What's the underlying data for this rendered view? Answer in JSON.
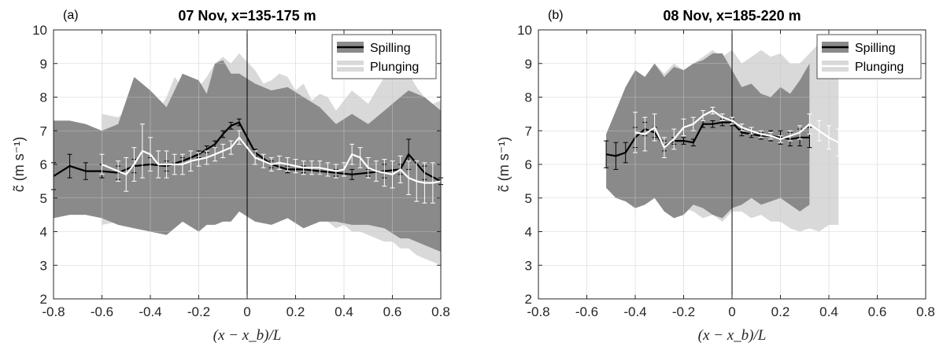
{
  "chart_data": [
    {
      "type": "line",
      "panel_label": "(a)",
      "title": "07 Nov, x=135-175 m",
      "xlabel": "(x − x_b)/L",
      "ylabel": "c̃  (m s⁻¹)",
      "xlim": [
        -0.8,
        0.8
      ],
      "ylim": [
        2,
        10
      ],
      "xticks": [
        "-0.8",
        "-0.6",
        "-0.4",
        "-0.2",
        "0",
        "0.2",
        "0.4",
        "0.6",
        "0.8"
      ],
      "yticks": [
        "2",
        "3",
        "4",
        "5",
        "6",
        "7",
        "8",
        "9",
        "10"
      ],
      "grid": true,
      "vertical_line_x": 0,
      "legend": {
        "position": "top-right",
        "entries": [
          "Spilling",
          "Plunging"
        ]
      },
      "series": [
        {
          "name": "Spilling",
          "color": "#000000",
          "band_color": "#8a8a8a",
          "x": [
            -0.8,
            -0.733,
            -0.667,
            -0.6,
            -0.533,
            -0.467,
            -0.4,
            -0.333,
            -0.267,
            -0.2,
            -0.167,
            -0.133,
            -0.1,
            -0.067,
            -0.033,
            0.033,
            0.1,
            0.167,
            0.233,
            0.3,
            0.367,
            0.433,
            0.5,
            0.567,
            0.633,
            0.667,
            0.733,
            0.8
          ],
          "y": [
            5.65,
            5.95,
            5.8,
            5.8,
            5.75,
            5.95,
            6.0,
            5.95,
            6.1,
            6.3,
            6.45,
            6.6,
            6.9,
            7.15,
            7.25,
            6.35,
            6.0,
            5.85,
            5.85,
            5.8,
            5.75,
            5.7,
            5.75,
            5.8,
            5.85,
            6.3,
            5.75,
            5.5
          ],
          "err": [
            0.4,
            0.35,
            0.25,
            0.2,
            0.2,
            0.2,
            0.2,
            0.15,
            0.1,
            0.1,
            0.1,
            0.1,
            0.1,
            0.1,
            0.1,
            0.1,
            0.1,
            0.1,
            0.1,
            0.1,
            0.1,
            0.15,
            0.1,
            0.2,
            0.15,
            0.45,
            0.2,
            0.1
          ],
          "upper": [
            7.3,
            7.3,
            7.2,
            7.0,
            7.2,
            8.6,
            8.2,
            7.7,
            8.7,
            8.5,
            8.1,
            9.0,
            9.1,
            8.7,
            8.7,
            8.4,
            8.2,
            8.3,
            8.0,
            7.7,
            7.2,
            7.5,
            7.2,
            7.6,
            8.0,
            8.2,
            8.0,
            7.6
          ],
          "lower": [
            4.4,
            4.5,
            4.5,
            4.4,
            4.2,
            4.1,
            4.0,
            3.9,
            4.3,
            4.0,
            4.2,
            4.2,
            4.3,
            4.3,
            4.6,
            4.3,
            4.2,
            4.4,
            4.1,
            4.3,
            4.3,
            4.2,
            4.2,
            4.1,
            3.8,
            3.8,
            3.6,
            3.4
          ]
        },
        {
          "name": "Plunging",
          "color": "#ffffff",
          "band_color": "#d9d9d9",
          "x": [
            -0.6,
            -0.533,
            -0.5,
            -0.467,
            -0.433,
            -0.4,
            -0.367,
            -0.333,
            -0.3,
            -0.267,
            -0.233,
            -0.2,
            -0.167,
            -0.133,
            -0.1,
            -0.067,
            -0.033,
            0.033,
            0.067,
            0.1,
            0.133,
            0.167,
            0.2,
            0.233,
            0.267,
            0.3,
            0.333,
            0.367,
            0.4,
            0.433,
            0.467,
            0.5,
            0.533,
            0.567,
            0.6,
            0.633,
            0.667,
            0.7,
            0.733,
            0.767,
            0.8
          ],
          "y": [
            6.0,
            5.8,
            5.7,
            6.0,
            6.4,
            6.3,
            6.0,
            6.0,
            6.0,
            6.0,
            6.1,
            6.15,
            6.2,
            6.3,
            6.4,
            6.5,
            6.8,
            6.2,
            6.1,
            6.0,
            6.05,
            6.0,
            5.95,
            5.9,
            5.9,
            5.9,
            5.85,
            5.8,
            5.85,
            6.3,
            6.2,
            5.9,
            5.8,
            5.75,
            5.7,
            5.85,
            5.6,
            5.5,
            5.45,
            5.45,
            5.5
          ],
          "err": [
            0.3,
            0.3,
            0.5,
            0.5,
            0.8,
            0.5,
            0.4,
            0.4,
            0.3,
            0.3,
            0.3,
            0.2,
            0.2,
            0.2,
            0.2,
            0.2,
            0.2,
            0.2,
            0.2,
            0.2,
            0.2,
            0.2,
            0.2,
            0.2,
            0.2,
            0.2,
            0.2,
            0.2,
            0.2,
            0.3,
            0.3,
            0.3,
            0.3,
            0.4,
            0.4,
            0.4,
            0.5,
            0.6,
            0.6,
            0.6,
            0.5
          ],
          "upper": [
            7.5,
            7.4,
            7.6,
            7.3,
            7.6,
            8.0,
            7.6,
            8.0,
            8.6,
            8.3,
            8.5,
            8.3,
            8.6,
            9.0,
            9.2,
            9.0,
            9.3,
            8.8,
            8.4,
            8.5,
            8.7,
            8.6,
            8.2,
            8.4,
            7.9,
            8.1,
            8.0,
            7.6,
            7.9,
            8.2,
            8.0,
            7.8,
            8.2,
            8.6,
            8.9,
            9.0,
            8.7,
            8.3,
            8.0,
            7.8,
            7.9
          ],
          "lower": [
            4.2,
            4.3,
            4.3,
            4.5,
            4.2,
            4.3,
            4.2,
            4.3,
            4.5,
            4.3,
            4.4,
            4.3,
            4.5,
            4.4,
            4.5,
            4.6,
            4.8,
            4.5,
            4.3,
            4.4,
            4.5,
            4.5,
            4.4,
            4.2,
            4.3,
            4.4,
            4.3,
            4.1,
            4.2,
            4.0,
            4.0,
            3.9,
            3.8,
            3.7,
            3.7,
            3.5,
            3.5,
            3.3,
            3.2,
            3.1,
            3.0
          ]
        }
      ]
    },
    {
      "type": "line",
      "panel_label": "(b)",
      "title": "08 Nov, x=185-220 m",
      "xlabel": "(x − x_b)/L",
      "ylabel": "c̃  (m s⁻¹)",
      "xlim": [
        -0.8,
        0.8
      ],
      "ylim": [
        2,
        10
      ],
      "xticks": [
        "-0.8",
        "-0.6",
        "-0.4",
        "-0.2",
        "0",
        "0.2",
        "0.4",
        "0.6",
        "0.8"
      ],
      "yticks": [
        "2",
        "3",
        "4",
        "5",
        "6",
        "7",
        "8",
        "9",
        "10"
      ],
      "grid": true,
      "vertical_line_x": 0,
      "legend": {
        "position": "top-right",
        "entries": [
          "Spilling",
          "Plunging"
        ]
      },
      "series": [
        {
          "name": "Spilling",
          "color": "#000000",
          "band_color": "#8a8a8a",
          "x": [
            -0.52,
            -0.48,
            -0.44,
            -0.4,
            -0.36,
            -0.32,
            -0.28,
            -0.24,
            -0.2,
            -0.16,
            -0.12,
            -0.08,
            -0.04,
            0.0,
            0.04,
            0.08,
            0.12,
            0.16,
            0.2,
            0.24,
            0.28,
            0.32
          ],
          "y": [
            6.3,
            6.25,
            6.35,
            6.8,
            7.05,
            6.95,
            6.55,
            6.7,
            6.7,
            6.65,
            7.2,
            7.2,
            7.25,
            7.25,
            6.95,
            6.9,
            6.85,
            6.85,
            6.8,
            6.75,
            6.8,
            6.8
          ],
          "err": [
            0.4,
            0.4,
            0.3,
            0.3,
            0.2,
            0.15,
            0.15,
            0.1,
            0.1,
            0.1,
            0.1,
            0.1,
            0.1,
            0.1,
            0.1,
            0.1,
            0.1,
            0.15,
            0.2,
            0.2,
            0.25,
            0.3
          ],
          "upper": [
            6.9,
            7.6,
            8.3,
            8.8,
            8.6,
            9.0,
            8.6,
            8.9,
            8.8,
            9.0,
            9.1,
            9.3,
            9.3,
            8.8,
            8.3,
            8.4,
            8.1,
            8.0,
            8.3,
            8.1,
            8.5,
            9.0
          ],
          "lower": [
            5.3,
            5.0,
            4.9,
            4.7,
            4.8,
            5.0,
            4.6,
            4.4,
            4.5,
            4.8,
            4.7,
            4.5,
            4.4,
            4.7,
            4.8,
            5.0,
            4.8,
            4.9,
            5.0,
            4.8,
            4.6,
            4.8
          ]
        },
        {
          "name": "Plunging",
          "color": "#ffffff",
          "band_color": "#d9d9d9",
          "x": [
            -0.4,
            -0.36,
            -0.32,
            -0.28,
            -0.24,
            -0.2,
            -0.16,
            -0.12,
            -0.08,
            -0.04,
            0.0,
            0.04,
            0.08,
            0.12,
            0.16,
            0.2,
            0.24,
            0.28,
            0.32,
            0.36,
            0.4,
            0.44
          ],
          "y": [
            6.95,
            6.9,
            7.1,
            6.5,
            6.75,
            7.1,
            7.2,
            7.45,
            7.6,
            7.4,
            7.3,
            7.1,
            7.0,
            6.9,
            6.85,
            6.75,
            6.85,
            6.95,
            7.2,
            7.0,
            6.8,
            6.65
          ],
          "err": [
            0.6,
            0.5,
            0.4,
            0.3,
            0.3,
            0.25,
            0.2,
            0.15,
            0.1,
            0.1,
            0.1,
            0.1,
            0.1,
            0.1,
            0.1,
            0.1,
            0.15,
            0.2,
            0.3,
            0.3,
            0.35,
            0.4
          ],
          "upper": [
            8.3,
            8.6,
            9.0,
            8.7,
            9.0,
            8.8,
            9.0,
            9.2,
            9.4,
            9.2,
            9.4,
            9.0,
            9.2,
            9.4,
            9.2,
            9.3,
            9.0,
            9.0,
            9.3,
            9.6,
            9.5,
            9.3
          ],
          "lower": [
            5.2,
            4.9,
            5.0,
            4.7,
            4.5,
            4.7,
            4.6,
            4.4,
            4.5,
            4.3,
            4.6,
            4.6,
            4.4,
            4.5,
            4.3,
            4.3,
            4.1,
            4.0,
            4.1,
            4.0,
            4.2,
            4.2
          ]
        }
      ]
    }
  ]
}
